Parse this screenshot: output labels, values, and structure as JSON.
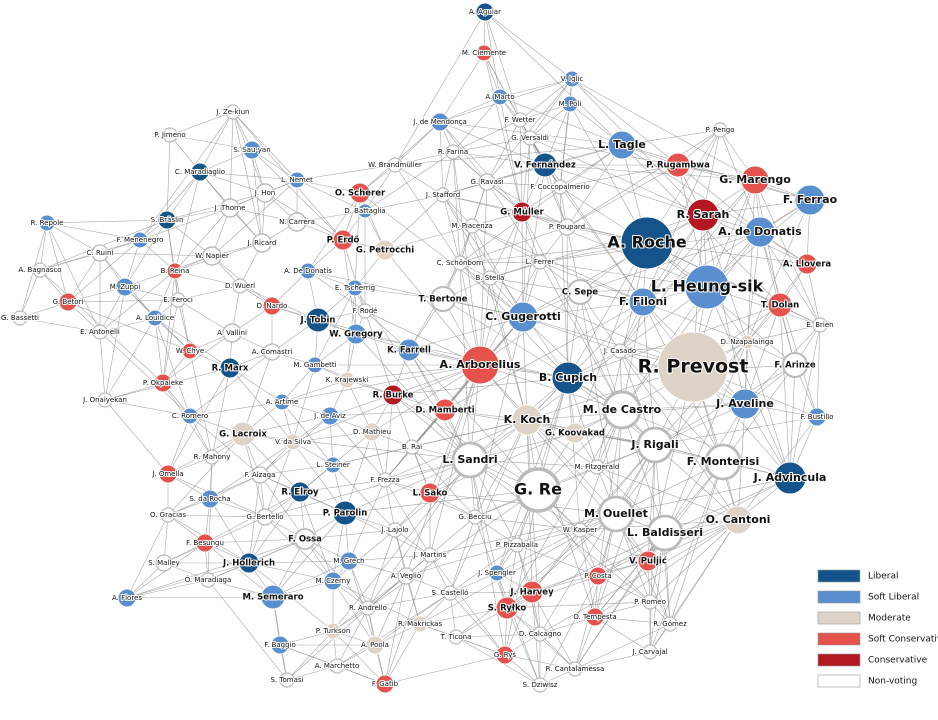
{
  "nodes": [
    {
      "label": "A. Aguiar",
      "group": "Liberal"
    },
    {
      "label": "M. Clemente",
      "group": "Soft Conservative"
    },
    {
      "label": "V. Iglic",
      "group": "Soft Liberal"
    },
    {
      "label": "M. Poli",
      "group": "Soft Liberal"
    },
    {
      "label": "A. Marto",
      "group": "Soft Liberal"
    },
    {
      "label": "P. Pengo",
      "group": "Non-voting"
    },
    {
      "label": "J. Ze-kiun",
      "group": "Non-voting"
    },
    {
      "label": "P. Jimeno",
      "group": "Non-voting"
    },
    {
      "label": "S. Sau-yan",
      "group": "Soft Liberal"
    },
    {
      "label": "J. de Mendonça",
      "group": "Soft Liberal"
    },
    {
      "label": "F. Wetter",
      "group": "Non-voting"
    },
    {
      "label": "G. Versaldi",
      "group": "Non-voting"
    },
    {
      "label": "L. Tagle",
      "group": "Soft Liberal"
    },
    {
      "label": "P. Rugambwa",
      "group": "Soft Conservative"
    },
    {
      "label": "C. Maradiaglio",
      "group": "Liberal"
    },
    {
      "label": "L. Nemet",
      "group": "Soft Liberal"
    },
    {
      "label": "R. Farina",
      "group": "Non-voting"
    },
    {
      "label": "V. Fernández",
      "group": "Liberal"
    },
    {
      "label": "W. Brandmüller",
      "group": "Non-voting"
    },
    {
      "label": "G. Ravasi",
      "group": "Non-voting"
    },
    {
      "label": "G. Marengo",
      "group": "Soft Conservative"
    },
    {
      "label": "F. Coccopalmerio",
      "group": "Non-voting"
    },
    {
      "label": "J. Hon",
      "group": "Non-voting"
    },
    {
      "label": "O. Scherer",
      "group": "Soft Conservative"
    },
    {
      "label": "J. Stafford",
      "group": "Non-voting"
    },
    {
      "label": "F. Ferrao",
      "group": "Soft Liberal"
    },
    {
      "label": "J. Thorne",
      "group": "Non-voting"
    },
    {
      "label": "D. Battaglia",
      "group": "Soft Liberal"
    },
    {
      "label": "G. Müller",
      "group": "Conservative"
    },
    {
      "label": "R. Sarah",
      "group": "Conservative"
    },
    {
      "label": "S. Bräslin",
      "group": "Liberal"
    },
    {
      "label": "N. Carrera",
      "group": "Non-voting"
    },
    {
      "label": "R. Repole",
      "group": "Soft Liberal"
    },
    {
      "label": "A. Roche",
      "group": "Liberal"
    },
    {
      "label": "A. de Donatis",
      "group": "Soft Liberal"
    },
    {
      "label": "M. Piacenza",
      "group": "Non-voting"
    },
    {
      "label": "P. Poupard",
      "group": "Non-voting"
    },
    {
      "label": "F. Menenegro",
      "group": "Soft Liberal"
    },
    {
      "label": "J. Ricard",
      "group": "Non-voting"
    },
    {
      "label": "P. Erdő",
      "group": "Soft Conservative"
    },
    {
      "label": "G. Petrocchi",
      "group": "Moderate"
    },
    {
      "label": "C. Ruini",
      "group": "Non-voting"
    },
    {
      "label": "W. Napier",
      "group": "Non-voting"
    },
    {
      "label": "B. Reina",
      "group": "Soft Conservative"
    },
    {
      "label": "A. De Donatis",
      "group": "Soft Liberal"
    },
    {
      "label": "C. Schönborn",
      "group": "Non-voting"
    },
    {
      "label": "L. Ferrer",
      "group": "Non-voting"
    },
    {
      "label": "A. Bagnasco",
      "group": "Non-voting"
    },
    {
      "label": "A. Llovera",
      "group": "Soft Conservative"
    },
    {
      "label": "L. Heung-sik",
      "group": "Soft Liberal"
    },
    {
      "label": "B. Stella",
      "group": "Non-voting"
    },
    {
      "label": "D. Wuerl",
      "group": "Non-voting"
    },
    {
      "label": "M. Zuppi",
      "group": "Soft Liberal"
    },
    {
      "label": "E. Feroci",
      "group": "Non-voting"
    },
    {
      "label": "E. Tscherrig",
      "group": "Soft Liberal"
    },
    {
      "label": "C. Sepe",
      "group": "Non-voting"
    },
    {
      "label": "G. Betori",
      "group": "Soft Conservative"
    },
    {
      "label": "D. Nardo",
      "group": "Soft Conservative"
    },
    {
      "label": "T. Bertone",
      "group": "Non-voting"
    },
    {
      "label": "F. Filoni",
      "group": "Soft Liberal"
    },
    {
      "label": "T. Dolan",
      "group": "Soft Conservative"
    },
    {
      "label": "F. Rodé",
      "group": "Non-voting"
    },
    {
      "label": "G. Bassetti",
      "group": "Non-voting"
    },
    {
      "label": "A. Louidice",
      "group": "Soft Liberal"
    },
    {
      "label": "J. Tobin",
      "group": "Liberal"
    },
    {
      "label": "C. Gugerotti",
      "group": "Soft Liberal"
    },
    {
      "label": "E. Brien",
      "group": "Non-voting"
    },
    {
      "label": "E. Antonelli",
      "group": "Non-voting"
    },
    {
      "label": "A. Vallini",
      "group": "Non-voting"
    },
    {
      "label": "W. Gregory",
      "group": "Soft Liberal"
    },
    {
      "label": "D. Nzapalainga",
      "group": "Moderate"
    },
    {
      "label": "J. Casado",
      "group": "Non-voting"
    },
    {
      "label": "F. Arinze",
      "group": "Non-voting"
    },
    {
      "label": "W. Chye",
      "group": "Soft Conservative"
    },
    {
      "label": "A. Comastri",
      "group": "Non-voting"
    },
    {
      "label": "K. Farrell",
      "group": "Soft Liberal"
    },
    {
      "label": "A. Arborelius",
      "group": "Soft Conservative"
    },
    {
      "label": "R. Prevost",
      "group": "Moderate"
    },
    {
      "label": "B. Cupich",
      "group": "Liberal"
    },
    {
      "label": "M. Gambetti",
      "group": "Soft Liberal"
    },
    {
      "label": "R. Marx",
      "group": "Liberal"
    },
    {
      "label": "P. Okpaleke",
      "group": "Soft Conservative"
    },
    {
      "label": "K. Krajewski",
      "group": "Moderate"
    },
    {
      "label": "J. Onaiyekan",
      "group": "Non-voting"
    },
    {
      "label": "R. Burke",
      "group": "Conservative"
    },
    {
      "label": "M. de Castro",
      "group": "Non-voting"
    },
    {
      "label": "J. Aveline",
      "group": "Soft Liberal"
    },
    {
      "label": "F. Bustillo",
      "group": "Soft Liberal"
    },
    {
      "label": "A. Artime",
      "group": "Soft Liberal"
    },
    {
      "label": "D. Mamberti",
      "group": "Soft Conservative"
    },
    {
      "label": "C. Romero",
      "group": "Soft Liberal"
    },
    {
      "label": "J. de Aviz",
      "group": "Soft Liberal"
    },
    {
      "label": "K. Koch",
      "group": "Moderate"
    },
    {
      "label": "G. Koovakad",
      "group": "Moderate"
    },
    {
      "label": "D. Mathieu",
      "group": "Moderate"
    },
    {
      "label": "J. Rigali",
      "group": "Non-voting"
    },
    {
      "label": "G. Lacroix",
      "group": "Moderate"
    },
    {
      "label": "V. da Silva",
      "group": "Moderate"
    },
    {
      "label": "B. Rai",
      "group": "Non-voting"
    },
    {
      "label": "L. Sandri",
      "group": "Non-voting"
    },
    {
      "label": "R. Mahony",
      "group": "Non-voting"
    },
    {
      "label": "F. Monterisi",
      "group": "Non-voting"
    },
    {
      "label": "M. Fitzgerald",
      "group": "Non-voting"
    },
    {
      "label": "J. Advincula",
      "group": "Liberal"
    },
    {
      "label": "L. Steiner",
      "group": "Soft Liberal"
    },
    {
      "label": "J. Omella",
      "group": "Soft Conservative"
    },
    {
      "label": "F. Alzaga",
      "group": "Non-voting"
    },
    {
      "label": "F. Frezza",
      "group": "Non-voting"
    },
    {
      "label": "G. Re",
      "group": "Non-voting"
    },
    {
      "label": "L. Sako",
      "group": "Soft Conservative"
    },
    {
      "label": "R. Elroy",
      "group": "Liberal"
    },
    {
      "label": "S. da Rocha",
      "group": "Soft Liberal"
    },
    {
      "label": "M. Ouellet",
      "group": "Non-voting"
    },
    {
      "label": "G. Becciu",
      "group": "Non-voting"
    },
    {
      "label": "P. Parolin",
      "group": "Liberal"
    },
    {
      "label": "O. Gracias",
      "group": "Non-voting"
    },
    {
      "label": "O. Cantoni",
      "group": "Moderate"
    },
    {
      "label": "G. Bertello",
      "group": "Non-voting"
    },
    {
      "label": "L. Baldisseri",
      "group": "Non-voting"
    },
    {
      "label": "J. Lajolo",
      "group": "Non-voting"
    },
    {
      "label": "W. Kasper",
      "group": "Non-voting"
    },
    {
      "label": "F. Ossa",
      "group": "Non-voting"
    },
    {
      "label": "F. Besungu",
      "group": "Soft Conservative"
    },
    {
      "label": "P. Pizzaballa",
      "group": "Non-voting"
    },
    {
      "label": "M. Grech",
      "group": "Soft Liberal"
    },
    {
      "label": "V. Puljić",
      "group": "Soft Conservative"
    },
    {
      "label": "S. Malley",
      "group": "Non-voting"
    },
    {
      "label": "J. Martins",
      "group": "Non-voting"
    },
    {
      "label": "J. Hollerich",
      "group": "Liberal"
    },
    {
      "label": "J. Spengler",
      "group": "Soft Liberal"
    },
    {
      "label": "P. Costa",
      "group": "Soft Conservative"
    },
    {
      "label": "M. Czerny",
      "group": "Soft Liberal"
    },
    {
      "label": "Ó. Maradiaga",
      "group": "Non-voting"
    },
    {
      "label": "A. Vegliò",
      "group": "Non-voting"
    },
    {
      "label": "J. Harvey",
      "group": "Soft Conservative"
    },
    {
      "label": "M. Semeraro",
      "group": "Soft Liberal"
    },
    {
      "label": "A. Flores",
      "group": "Soft Liberal"
    },
    {
      "label": "S. Castelló",
      "group": "Non-voting"
    },
    {
      "label": "P. Romeo",
      "group": "Non-voting"
    },
    {
      "label": "S. Ryłko",
      "group": "Soft Conservative"
    },
    {
      "label": "O. Tempesta",
      "group": "Soft Conservative"
    },
    {
      "label": "R. Andrello",
      "group": "Non-voting"
    },
    {
      "label": "R. Makrickas",
      "group": "Moderate"
    },
    {
      "label": "R. Gómez",
      "group": "Non-voting"
    },
    {
      "label": "P. Turkson",
      "group": "Moderate"
    },
    {
      "label": "T. Ticona",
      "group": "Non-voting"
    },
    {
      "label": "D. Calcagno",
      "group": "Non-voting"
    },
    {
      "label": "F. Baggio",
      "group": "Soft Liberal"
    },
    {
      "label": "A. Poola",
      "group": "Moderate"
    },
    {
      "label": "J. Carvajal",
      "group": "Non-voting"
    },
    {
      "label": "G. Ryś",
      "group": "Soft Conservative"
    },
    {
      "label": "R. Cantalamessa",
      "group": "Non-voting"
    },
    {
      "label": "A. Marchetto",
      "group": "Non-voting"
    },
    {
      "label": "S. Tomasi",
      "group": "Non-voting"
    },
    {
      "label": "F. Gatib",
      "group": "Soft Conservative"
    },
    {
      "label": "S. Dziwisz",
      "group": "Non-voting"
    }
  ],
  "legend": [
    {
      "label": "Liberal",
      "color": "#15548a"
    },
    {
      "label": "Soft Liberal",
      "color": "#5a8fcf"
    },
    {
      "label": "Moderate",
      "color": "#ddd3c6"
    },
    {
      "label": "Soft Conservative",
      "color": "#e5524c"
    },
    {
      "label": "Conservative",
      "color": "#b3171f"
    },
    {
      "label": "Non-voting",
      "color": "#ffffff"
    }
  ]
}
